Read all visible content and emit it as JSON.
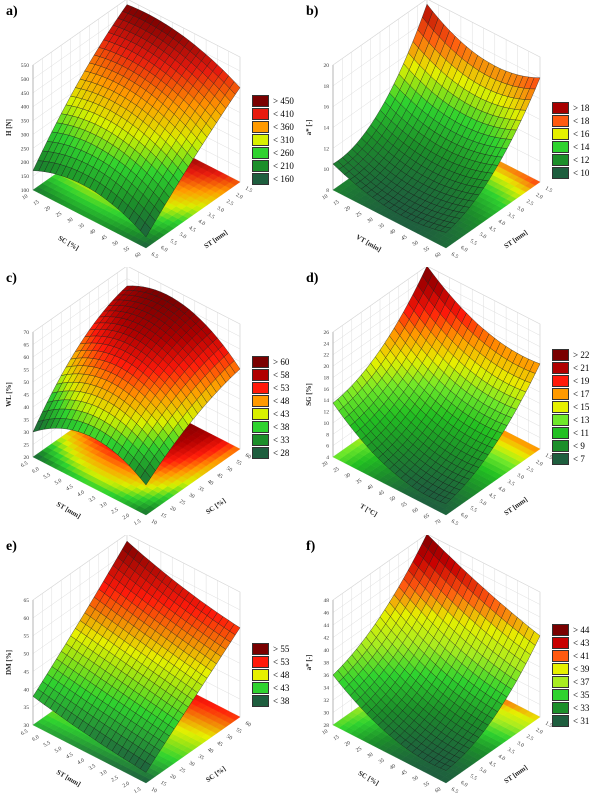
{
  "chart_data": [
    {
      "id": "a",
      "panel_label": "a)",
      "type": "surface3d",
      "zlabel": "H [N]",
      "zlim": [
        100,
        550
      ],
      "zticks": [
        100,
        150,
        200,
        250,
        300,
        350,
        400,
        450,
        500,
        550
      ],
      "ulabel": "SC [%]",
      "uticks": [
        "10",
        "15",
        "20",
        "25",
        "30",
        "35",
        "40",
        "45",
        "50",
        "55",
        "60"
      ],
      "vlabel": "ST [mm]",
      "vticks": [
        "6.5",
        "6.0",
        "5.5",
        "5.0",
        "4.5",
        "4.0",
        "3.5",
        "3.0",
        "2.5",
        "2.0",
        "1.5"
      ],
      "zgrid": [
        [
          140,
          300,
          440
        ],
        [
          210,
          390,
          520
        ],
        [
          170,
          380,
          530
        ]
      ],
      "legend": [
        "< 160",
        "< 210",
        "< 260",
        "< 310",
        "< 360",
        "< 410",
        "> 450"
      ],
      "colors": [
        "#1e5e3e",
        "#1c8f2a",
        "#2fd32f",
        "#d8f000",
        "#ff9a00",
        "#e81b0e",
        "#7a0000"
      ]
    },
    {
      "id": "b",
      "panel_label": "b)",
      "type": "surface3d",
      "zlabel": "a* [-]",
      "zlim": [
        8,
        20
      ],
      "zticks": [
        8,
        10,
        12,
        14,
        16,
        18,
        20
      ],
      "ulabel": "VT [min]",
      "uticks": [
        "10",
        "15",
        "20",
        "25",
        "30",
        "35",
        "40",
        "45",
        "50",
        "55",
        "60"
      ],
      "vlabel": "ST [mm]",
      "vticks": [
        "6.5",
        "6.0",
        "5.5",
        "5.0",
        "4.5",
        "4.0",
        "3.5",
        "3.0",
        "2.5",
        "2.0",
        "1.5"
      ],
      "zgrid": [
        [
          9.5,
          12,
          18
        ],
        [
          9,
          11,
          17
        ],
        [
          10.5,
          12.5,
          19.5
        ]
      ],
      "legend": [
        "< 10",
        "< 12",
        "< 14",
        "< 16",
        "< 18",
        "> 18"
      ],
      "colors": [
        "#1e5e3e",
        "#1c8f2a",
        "#2fd32f",
        "#e6f000",
        "#ff5a10",
        "#a80000"
      ]
    },
    {
      "id": "c",
      "panel_label": "c)",
      "type": "surface3d",
      "zlabel": "WL [%]",
      "zlim": [
        20,
        70
      ],
      "zticks": [
        20,
        25,
        30,
        35,
        40,
        45,
        50,
        55,
        60,
        65,
        70
      ],
      "ulabel": "ST [mm]",
      "uticks": [
        "6.5",
        "6.0",
        "5.5",
        "5.0",
        "4.5",
        "4.0",
        "3.5",
        "3.0",
        "2.5",
        "2.0",
        "1.5"
      ],
      "vlabel": "SC [%]",
      "vticks": [
        "10",
        "15",
        "20",
        "25",
        "30",
        "35",
        "40",
        "45",
        "50",
        "55",
        "60"
      ],
      "zgrid": [
        [
          32,
          45,
          52
        ],
        [
          40,
          58,
          66
        ],
        [
          30,
          52,
          62
        ]
      ],
      "legend": [
        "< 28",
        "< 33",
        "< 38",
        "< 43",
        "< 48",
        "< 53",
        "< 58",
        "> 60"
      ],
      "colors": [
        "#1e5e3e",
        "#1c8f2a",
        "#2fd32f",
        "#d8f000",
        "#ff9a00",
        "#ff1a0a",
        "#b00000",
        "#7a0000"
      ]
    },
    {
      "id": "d",
      "panel_label": "d)",
      "type": "surface3d",
      "zlabel": "SG [%]",
      "zlim": [
        4,
        26
      ],
      "zticks": [
        4,
        6,
        8,
        10,
        12,
        14,
        16,
        18,
        20,
        22,
        24,
        26
      ],
      "ulabel": "T [°C]",
      "uticks": [
        "20",
        "25",
        "30",
        "35",
        "40",
        "45",
        "50",
        "55",
        "60",
        "65",
        "70"
      ],
      "vlabel": "ST [mm]",
      "vticks": [
        "6.5",
        "6.0",
        "5.5",
        "5.0",
        "4.5",
        "4.0",
        "3.5",
        "3.0",
        "2.5",
        "2.0",
        "1.5"
      ],
      "zgrid": [
        [
          6,
          10,
          19
        ],
        [
          7,
          11,
          20
        ],
        [
          13.5,
          17,
          26
        ]
      ],
      "legend": [
        "< 7",
        "< 9",
        "< 11",
        "< 13",
        "< 15",
        "< 17",
        "< 19",
        "< 21",
        "> 22"
      ],
      "colors": [
        "#1e5e3e",
        "#1c8f2a",
        "#22c022",
        "#6ee82a",
        "#e6f000",
        "#ff9a00",
        "#ff1a0a",
        "#b00000",
        "#7a0000"
      ]
    },
    {
      "id": "e",
      "panel_label": "e)",
      "type": "surface3d",
      "zlabel": "DM [%]",
      "zlim": [
        30,
        65
      ],
      "zticks": [
        30,
        35,
        40,
        45,
        50,
        55,
        60,
        65
      ],
      "ulabel": "ST [mm]",
      "uticks": [
        "6.5",
        "6.0",
        "5.5",
        "5.0",
        "4.5",
        "4.0",
        "3.5",
        "3.0",
        "2.5",
        "2.0",
        "1.5"
      ],
      "vlabel": "SC [%]",
      "vticks": [
        "10",
        "15",
        "20",
        "25",
        "30",
        "35",
        "40",
        "45",
        "50",
        "55",
        "60"
      ],
      "zgrid": [
        [
          33,
          44,
          55
        ],
        [
          35,
          47,
          58
        ],
        [
          38,
          50,
          63
        ]
      ],
      "legend": [
        "< 38",
        "< 43",
        "< 48",
        "< 53",
        "> 55"
      ],
      "colors": [
        "#1e5e3e",
        "#2fd32f",
        "#e6f000",
        "#ff1a0a",
        "#7a0000"
      ]
    },
    {
      "id": "f",
      "panel_label": "f)",
      "type": "surface3d",
      "zlabel": "a* [-]",
      "zlim": [
        28,
        48
      ],
      "zticks": [
        28,
        30,
        32,
        34,
        36,
        38,
        40,
        42,
        44,
        46,
        48
      ],
      "ulabel": "SC [%]",
      "uticks": [
        "10",
        "15",
        "20",
        "25",
        "30",
        "35",
        "40",
        "45",
        "50",
        "55",
        "60"
      ],
      "vlabel": "ST [mm]",
      "vticks": [
        "6.5",
        "6.0",
        "5.5",
        "5.0",
        "4.5",
        "4.0",
        "3.5",
        "3.0",
        "2.5",
        "2.0",
        "1.5"
      ],
      "zgrid": [
        [
          30,
          33,
          41
        ],
        [
          31,
          35,
          44
        ],
        [
          36,
          40,
          48
        ]
      ],
      "legend": [
        "< 31",
        "< 33",
        "< 35",
        "< 37",
        "< 39",
        "< 41",
        "< 43",
        "> 44"
      ],
      "colors": [
        "#1e5e3e",
        "#1c8f2a",
        "#2fd32f",
        "#a8ec20",
        "#e6f000",
        "#ff5a10",
        "#c80000",
        "#7a0000"
      ]
    }
  ]
}
